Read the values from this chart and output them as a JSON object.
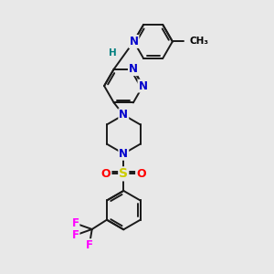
{
  "background_color": "#e8e8e8",
  "atom_colors": {
    "N": "#0000cc",
    "NH": "#008080",
    "H": "#008080",
    "O": "#ff0000",
    "S": "#cccc00",
    "F": "#ff00ff",
    "C": "#000000"
  },
  "bond_color": "#1a1a1a",
  "bond_width": 1.4,
  "figsize": [
    3.0,
    3.0
  ],
  "dpi": 100,
  "scale": 1.0
}
